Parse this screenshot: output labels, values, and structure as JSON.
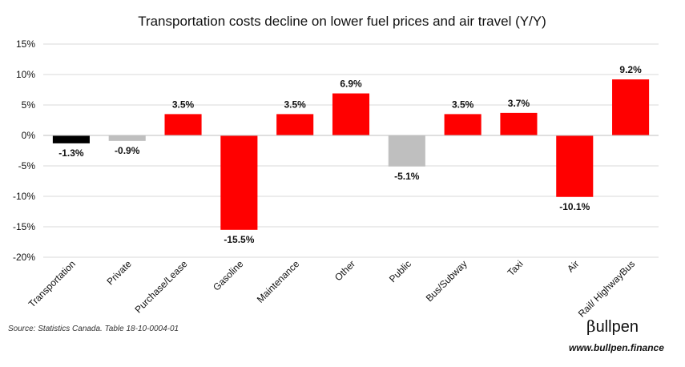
{
  "chart_data": {
    "type": "bar",
    "title": "Transportation costs decline on lower fuel prices and air travel (Y/Y)",
    "categories": [
      "Transportation",
      "Private",
      "Purchase/Lease",
      "Gasoline",
      "Maintenance",
      "Other",
      "Public",
      "Bus/Subway",
      "Taxi",
      "Air",
      "Rail/ HighwayBus"
    ],
    "values": [
      -1.3,
      -0.9,
      3.5,
      -15.5,
      3.5,
      6.9,
      -5.1,
      3.5,
      3.7,
      -10.1,
      9.2
    ],
    "data_labels": [
      "-1.3%",
      "-0.9%",
      "3.5%",
      "-15.5%",
      "3.5%",
      "6.9%",
      "-5.1%",
      "3.5%",
      "3.7%",
      "-10.1%",
      "9.2%"
    ],
    "bar_colors": [
      "#000000",
      "#bfbfbf",
      "#ff0000",
      "#ff0000",
      "#ff0000",
      "#ff0000",
      "#bfbfbf",
      "#ff0000",
      "#ff0000",
      "#ff0000",
      "#ff0000"
    ],
    "ylim": [
      -20,
      15
    ],
    "yticks": [
      15,
      10,
      5,
      0,
      -5,
      -10,
      -15,
      -20
    ],
    "ytick_labels": [
      "15%",
      "10%",
      "5%",
      "0%",
      "-5%",
      "-10%",
      "-15%",
      "-20%"
    ],
    "grid": true,
    "legend": false
  },
  "footer": {
    "source": "Source: Statistics Canada. Table 18-10-0004-01",
    "brand_symbol": "β",
    "brand_text": "ullpen",
    "url": "www.bullpen.finance"
  }
}
